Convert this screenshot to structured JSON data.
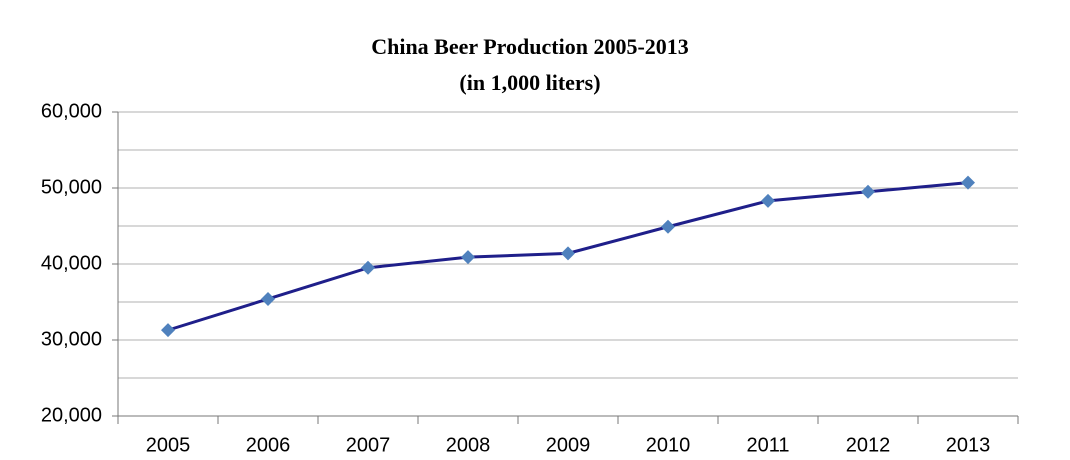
{
  "chart_data": {
    "type": "line",
    "title": "China Beer Production 2005-2013",
    "subtitle": "(in 1,000 liters)",
    "categories": [
      "2005",
      "2006",
      "2007",
      "2008",
      "2009",
      "2010",
      "2011",
      "2012",
      "2013"
    ],
    "series": [
      {
        "name": "China Beer Production",
        "color": "#1f1f8a",
        "marker_color": "#4f81bd",
        "values": [
          31300,
          35400,
          39500,
          40900,
          41400,
          44900,
          48300,
          49500,
          50700
        ]
      }
    ],
    "ylim": [
      20000,
      60000
    ],
    "yticks": [
      {
        "value": 20000,
        "label": "20,000"
      },
      {
        "value": 30000,
        "label": "30,000"
      },
      {
        "value": 40000,
        "label": "40,000"
      },
      {
        "value": 50000,
        "label": "50,000"
      },
      {
        "value": 60000,
        "label": "60,000"
      }
    ],
    "minor_yticks": [
      25000,
      35000,
      45000,
      55000
    ],
    "grid": true
  }
}
